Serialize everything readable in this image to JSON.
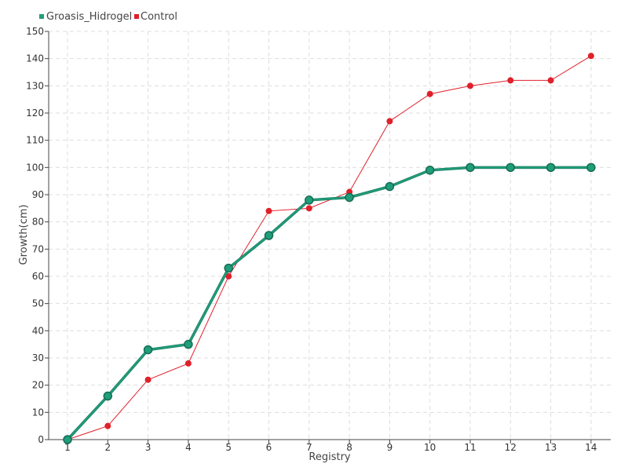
{
  "chart_data": {
    "type": "line",
    "title": "",
    "xlabel": "Registry",
    "ylabel": "Growth(cm)",
    "categories": [
      "1",
      "2",
      "3",
      "4",
      "5",
      "6",
      "7",
      "8",
      "9",
      "10",
      "11",
      "12",
      "13",
      "14"
    ],
    "ylim": [
      0,
      150
    ],
    "yticks": [
      "0",
      "10",
      "20",
      "30",
      "40",
      "50",
      "60",
      "70",
      "80",
      "90",
      "100",
      "110",
      "120",
      "130",
      "140",
      "150"
    ],
    "grid": true,
    "legend_position": "top-left",
    "series": [
      {
        "name": "Groasis_Hidrogel",
        "color": "#1f9e7a",
        "values": [
          0,
          16,
          33,
          35,
          63,
          75,
          88,
          89,
          93,
          99,
          100,
          100,
          100,
          100
        ]
      },
      {
        "name": "Control",
        "color": "#e0202a",
        "values": [
          0,
          5,
          22,
          28,
          60,
          84,
          85,
          91,
          117,
          127,
          130,
          132,
          132,
          141
        ]
      }
    ]
  }
}
